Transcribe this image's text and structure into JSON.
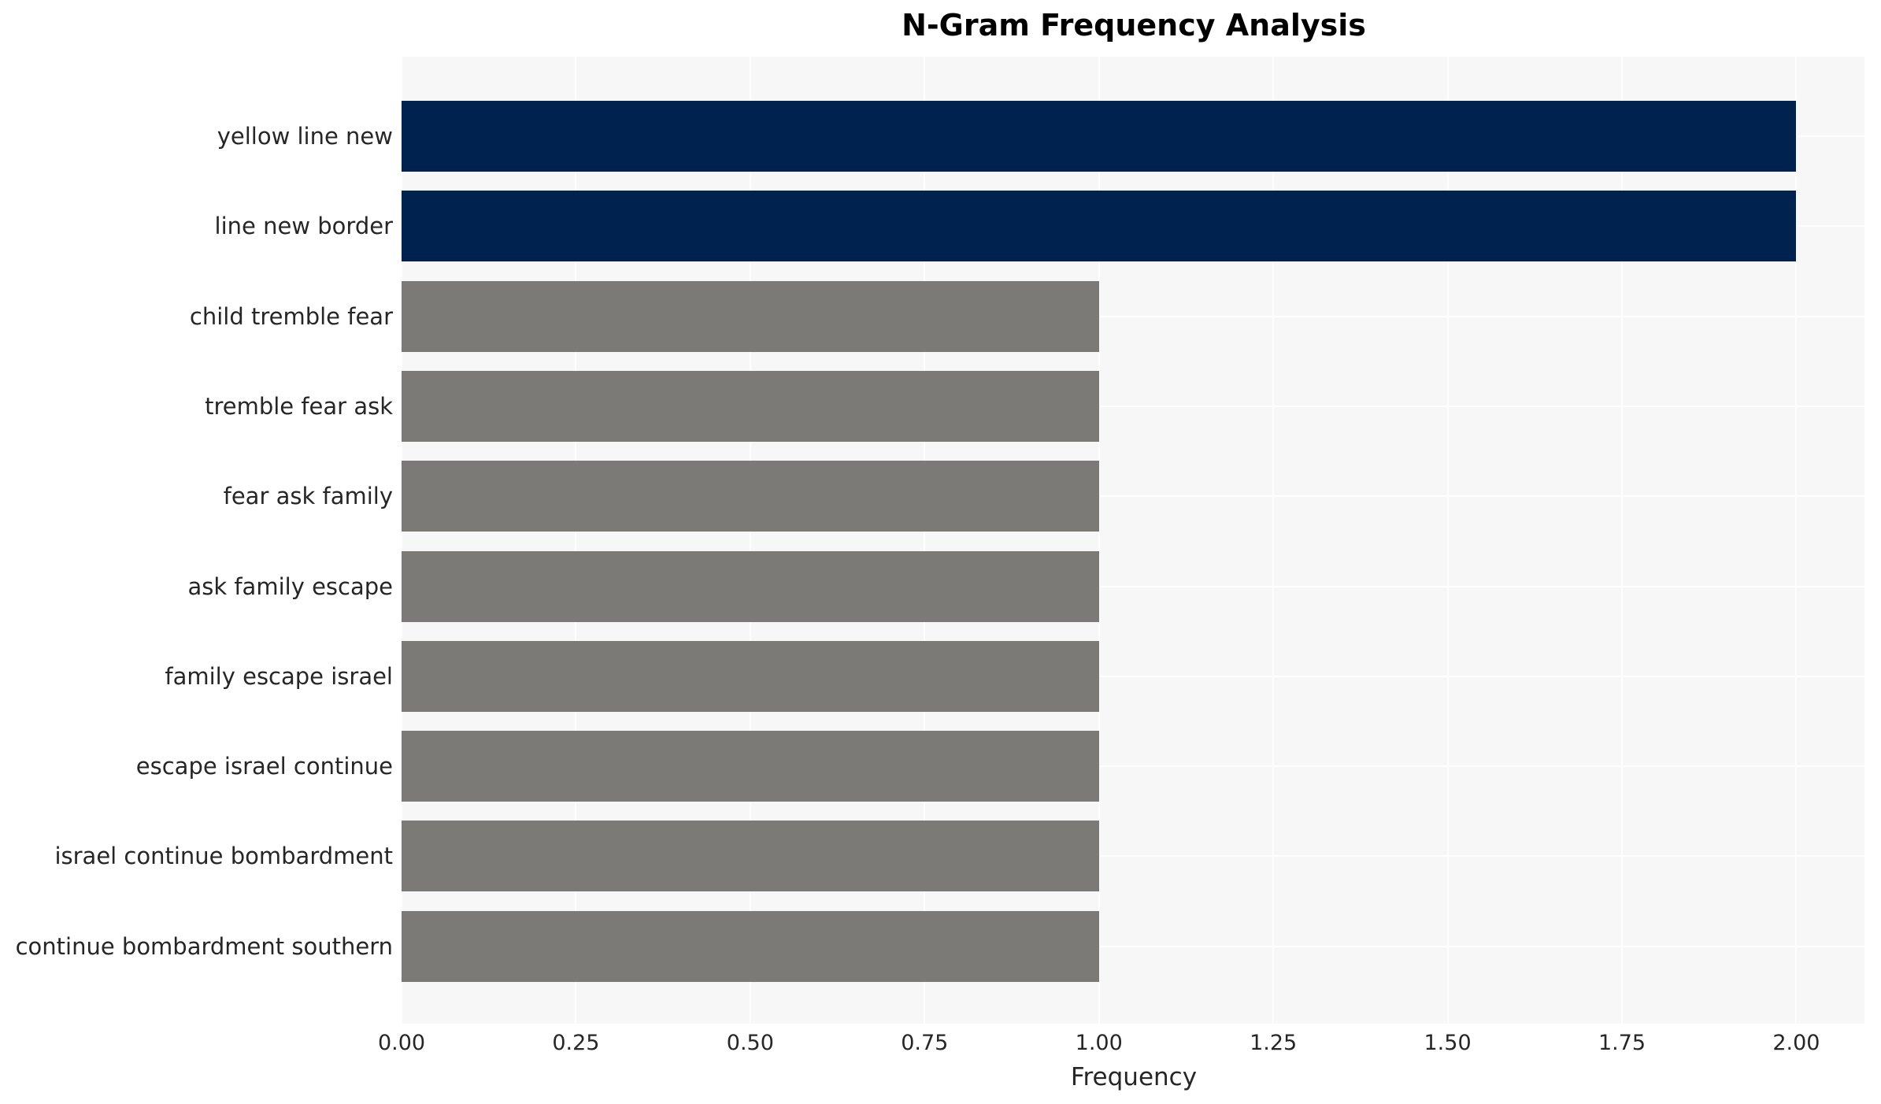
{
  "chart_data": {
    "type": "bar",
    "orientation": "horizontal",
    "title": "N-Gram Frequency Analysis",
    "xlabel": "Frequency",
    "ylabel": "",
    "categories": [
      "yellow line new",
      "line new border",
      "child tremble fear",
      "tremble fear ask",
      "fear ask family",
      "ask family escape",
      "family escape israel",
      "escape israel continue",
      "israel continue bombardment",
      "continue bombardment southern"
    ],
    "values": [
      2,
      2,
      1,
      1,
      1,
      1,
      1,
      1,
      1,
      1
    ],
    "bar_colors": [
      "#00224e",
      "#00224e",
      "#7b7a76",
      "#7b7a76",
      "#7b7a76",
      "#7b7a76",
      "#7b7a76",
      "#7b7a76",
      "#7b7a76",
      "#7b7a76"
    ],
    "xlim": [
      0,
      2.1
    ],
    "xtick_labels": [
      "0.00",
      "0.25",
      "0.50",
      "0.75",
      "1.00",
      "1.25",
      "1.50",
      "1.75",
      "2.00"
    ],
    "grid": "on",
    "legend": "none",
    "plot_background": "#f7f7f7",
    "grid_color": "#ffffff",
    "text_color": "#262626",
    "title_color": "#000000"
  }
}
